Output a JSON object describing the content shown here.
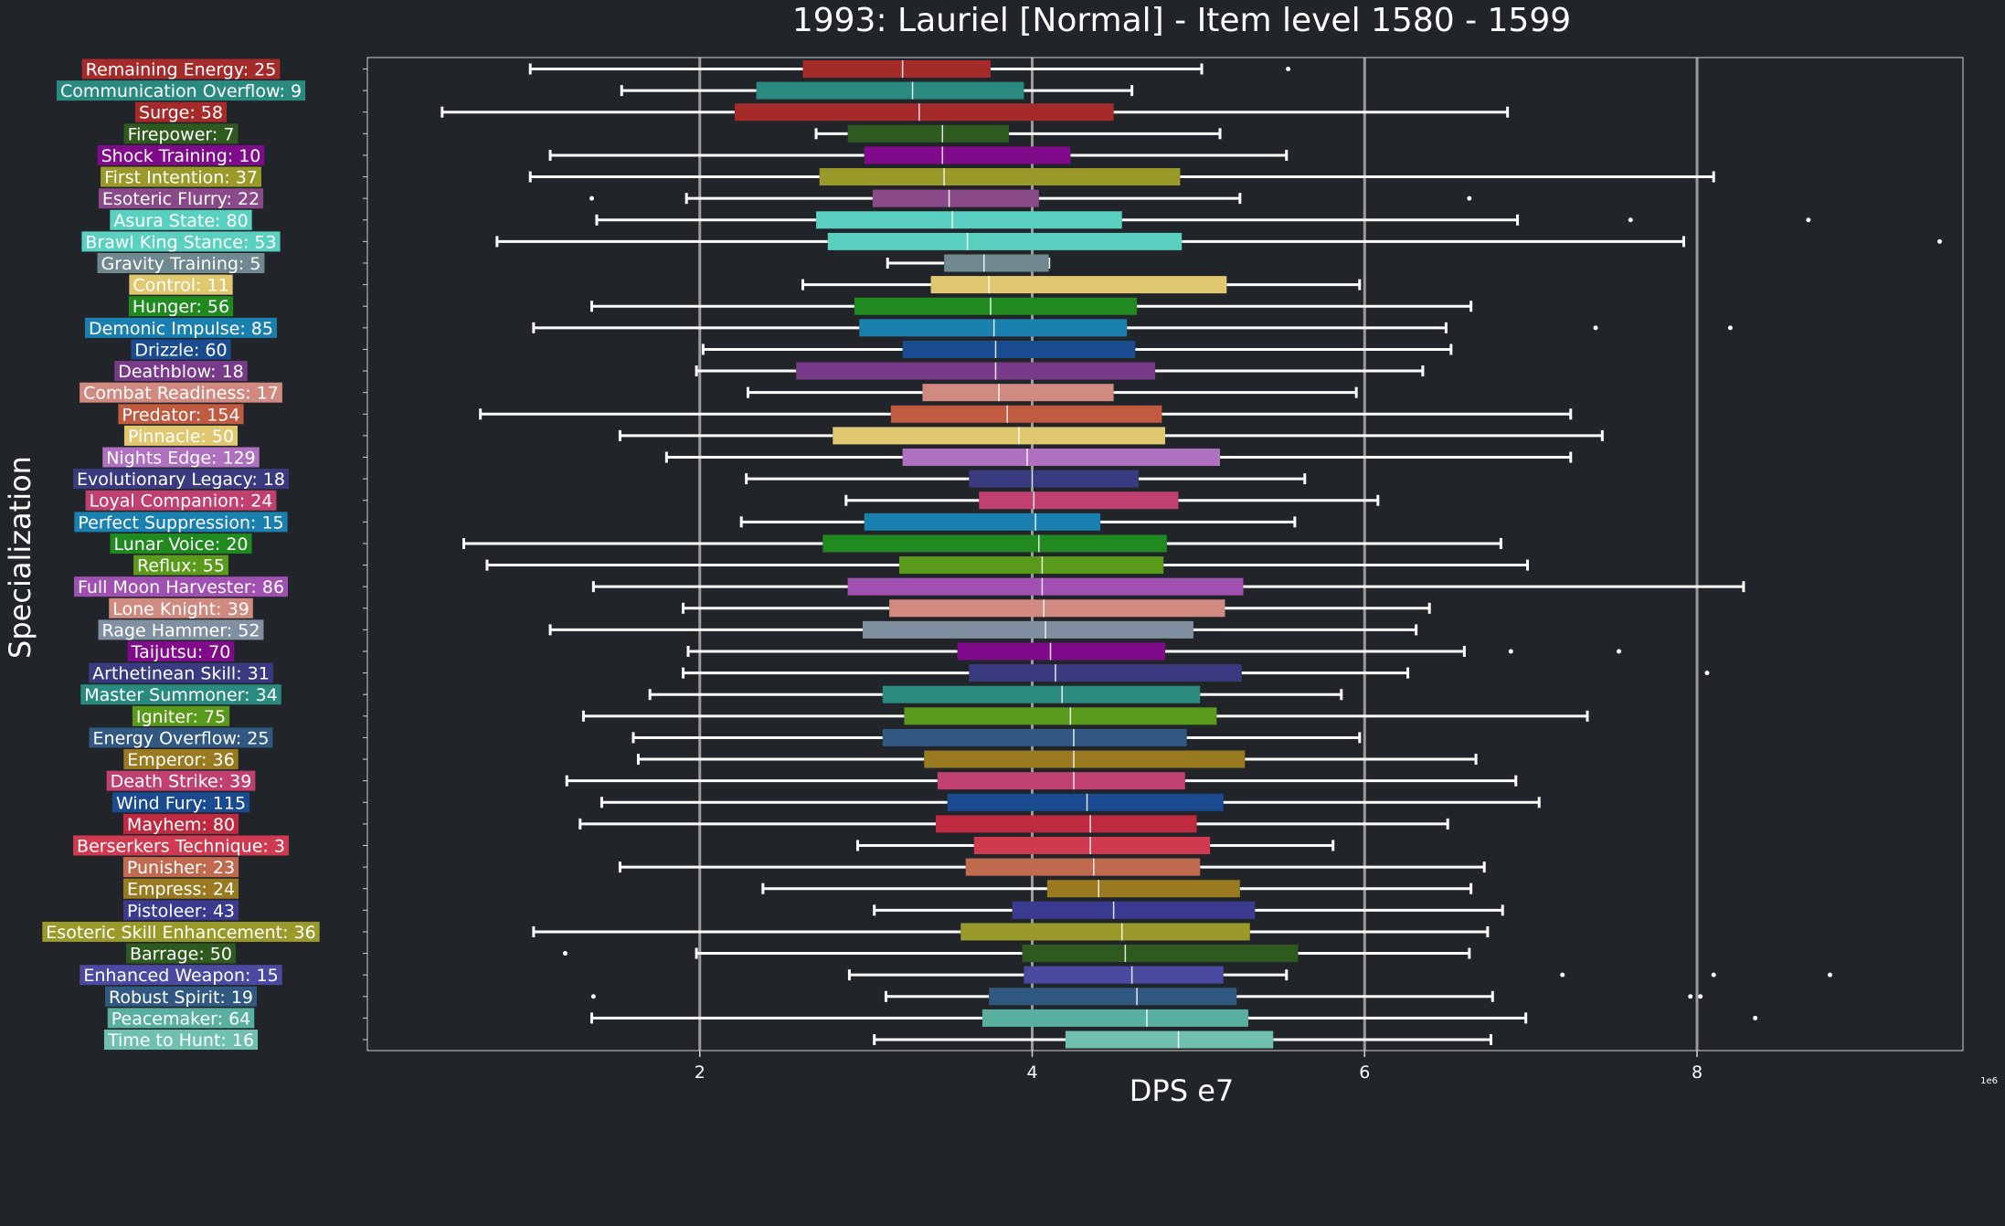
{
  "chart_data": {
    "type": "boxplot",
    "orientation": "horizontal",
    "title": "1993: Lauriel [Normal] - Item level 1580 - 1599",
    "xlabel": "DPS e7",
    "ylabel": "Specialization",
    "x_offset_label": "1e6",
    "xlim": [
      0.0,
      9.6
    ],
    "xticks": [
      2,
      4,
      6,
      8
    ],
    "xtick_labels": [
      "2",
      "4",
      "6",
      "8"
    ],
    "grid": "vertical lines at major ticks",
    "background": "#212428",
    "categories": [
      {
        "label": "Remaining Energy: 25",
        "color": "#a52a2a",
        "min": 0.98,
        "q1": 2.62,
        "median": 3.22,
        "q3": 3.75,
        "max": 5.02,
        "outliers": [
          5.54
        ]
      },
      {
        "label": "Communication Overflow: 9",
        "color": "#2a8a80",
        "min": 1.53,
        "q1": 2.34,
        "median": 3.28,
        "q3": 3.95,
        "max": 4.6,
        "outliers": []
      },
      {
        "label": "Surge: 58",
        "color": "#a52a2a",
        "min": 0.45,
        "q1": 2.21,
        "median": 3.32,
        "q3": 4.49,
        "max": 6.86,
        "outliers": []
      },
      {
        "label": "Firepower: 7",
        "color": "#2f5a1f",
        "min": 2.7,
        "q1": 2.89,
        "median": 3.46,
        "q3": 3.86,
        "max": 5.13,
        "outliers": []
      },
      {
        "label": "Shock Training: 10",
        "color": "#800b8a",
        "min": 1.1,
        "q1": 2.99,
        "median": 3.46,
        "q3": 4.23,
        "max": 5.53,
        "outliers": []
      },
      {
        "label": "First Intention: 37",
        "color": "#9a9a2a",
        "min": 0.98,
        "q1": 2.72,
        "median": 3.47,
        "q3": 4.89,
        "max": 8.1,
        "outliers": []
      },
      {
        "label": "Esoteric Flurry: 22",
        "color": "#8a4a8a",
        "min": 1.92,
        "q1": 3.04,
        "median": 3.5,
        "q3": 4.04,
        "max": 5.25,
        "outliers": [
          1.35,
          6.63
        ]
      },
      {
        "label": "Asura State: 80",
        "color": "#5ad0c0",
        "min": 1.38,
        "q1": 2.7,
        "median": 3.52,
        "q3": 4.54,
        "max": 6.92,
        "outliers": [
          7.6,
          8.67
        ]
      },
      {
        "label": "Brawl King Stance: 53",
        "color": "#5ad0c0",
        "min": 0.78,
        "q1": 2.77,
        "median": 3.61,
        "q3": 4.9,
        "max": 7.92,
        "outliers": [
          9.46
        ]
      },
      {
        "label": "Gravity Training: 5",
        "color": "#708890",
        "min": 3.13,
        "q1": 3.47,
        "median": 3.71,
        "q3": 4.1,
        "max": 4.1,
        "outliers": []
      },
      {
        "label": "Control: 11",
        "color": "#e0c870",
        "min": 2.62,
        "q1": 3.39,
        "median": 3.74,
        "q3": 5.17,
        "max": 5.97,
        "outliers": []
      },
      {
        "label": "Hunger: 56",
        "color": "#208a20",
        "min": 1.35,
        "q1": 2.93,
        "median": 3.75,
        "q3": 4.63,
        "max": 6.64,
        "outliers": []
      },
      {
        "label": "Demonic Impulse: 85",
        "color": "#1a80b0",
        "min": 1.0,
        "q1": 2.96,
        "median": 3.77,
        "q3": 4.57,
        "max": 6.49,
        "outliers": [
          7.39,
          8.2
        ]
      },
      {
        "label": "Drizzle: 60",
        "color": "#1a4a90",
        "min": 2.02,
        "q1": 3.22,
        "median": 3.78,
        "q3": 4.62,
        "max": 6.52,
        "outliers": []
      },
      {
        "label": "Deathblow: 18",
        "color": "#7a3a8a",
        "min": 1.98,
        "q1": 2.58,
        "median": 3.78,
        "q3": 4.74,
        "max": 6.35,
        "outliers": []
      },
      {
        "label": "Combat Readiness: 17",
        "color": "#d08a80",
        "min": 2.29,
        "q1": 3.34,
        "median": 3.8,
        "q3": 4.49,
        "max": 5.95,
        "outliers": []
      },
      {
        "label": "Predator: 154",
        "color": "#c05a40",
        "min": 0.68,
        "q1": 3.15,
        "median": 3.85,
        "q3": 4.78,
        "max": 7.24,
        "outliers": []
      },
      {
        "label": "Pinnacle: 50",
        "color": "#e0c870",
        "min": 1.52,
        "q1": 2.8,
        "median": 3.92,
        "q3": 4.8,
        "max": 7.43,
        "outliers": []
      },
      {
        "label": "Nights Edge: 129",
        "color": "#b070c0",
        "min": 1.8,
        "q1": 3.22,
        "median": 3.97,
        "q3": 5.13,
        "max": 7.24,
        "outliers": []
      },
      {
        "label": "Evolutionary Legacy: 18",
        "color": "#3a3a80",
        "min": 2.28,
        "q1": 3.62,
        "median": 4.0,
        "q3": 4.64,
        "max": 5.64,
        "outliers": []
      },
      {
        "label": "Loyal Companion: 24",
        "color": "#c04070",
        "min": 2.88,
        "q1": 3.68,
        "median": 4.01,
        "q3": 4.88,
        "max": 6.08,
        "outliers": []
      },
      {
        "label": "Perfect Suppression: 15",
        "color": "#1a80b0",
        "min": 2.25,
        "q1": 2.99,
        "median": 4.02,
        "q3": 4.41,
        "max": 5.58,
        "outliers": []
      },
      {
        "label": "Lunar Voice: 20",
        "color": "#208a20",
        "min": 0.58,
        "q1": 2.74,
        "median": 4.04,
        "q3": 4.81,
        "max": 6.82,
        "outliers": []
      },
      {
        "label": "Reflux: 55",
        "color": "#5a9a1a",
        "min": 0.72,
        "q1": 3.2,
        "median": 4.06,
        "q3": 4.79,
        "max": 6.98,
        "outliers": []
      },
      {
        "label": "Full Moon Harvester: 86",
        "color": "#a050b0",
        "min": 1.36,
        "q1": 2.89,
        "median": 4.06,
        "q3": 5.27,
        "max": 8.28,
        "outliers": []
      },
      {
        "label": "Lone Knight: 39",
        "color": "#d08a80",
        "min": 1.9,
        "q1": 3.14,
        "median": 4.07,
        "q3": 5.16,
        "max": 6.39,
        "outliers": []
      },
      {
        "label": "Rage Hammer: 52",
        "color": "#8090a0",
        "min": 1.1,
        "q1": 2.98,
        "median": 4.08,
        "q3": 4.97,
        "max": 6.31,
        "outliers": []
      },
      {
        "label": "Taijutsu: 70",
        "color": "#800b8a",
        "min": 1.93,
        "q1": 3.55,
        "median": 4.11,
        "q3": 4.8,
        "max": 6.6,
        "outliers": [
          6.88,
          7.53
        ]
      },
      {
        "label": "Arthetinean Skill: 31",
        "color": "#3a3a80",
        "min": 1.9,
        "q1": 3.62,
        "median": 4.14,
        "q3": 5.26,
        "max": 6.26,
        "outliers": [
          8.06
        ]
      },
      {
        "label": "Master Summoner: 34",
        "color": "#2a8a80",
        "min": 1.7,
        "q1": 3.1,
        "median": 4.18,
        "q3": 5.01,
        "max": 5.86,
        "outliers": []
      },
      {
        "label": "Igniter: 75",
        "color": "#5a9a1a",
        "min": 1.3,
        "q1": 3.23,
        "median": 4.23,
        "q3": 5.11,
        "max": 7.34,
        "outliers": []
      },
      {
        "label": "Energy Overflow: 25",
        "color": "#305880",
        "min": 1.6,
        "q1": 3.1,
        "median": 4.25,
        "q3": 4.93,
        "max": 5.97,
        "outliers": []
      },
      {
        "label": "Emperor: 36",
        "color": "#9a7a20",
        "min": 1.63,
        "q1": 3.35,
        "median": 4.25,
        "q3": 5.28,
        "max": 6.67,
        "outliers": []
      },
      {
        "label": "Death Strike: 39",
        "color": "#c04070",
        "min": 1.2,
        "q1": 3.43,
        "median": 4.25,
        "q3": 4.92,
        "max": 6.91,
        "outliers": []
      },
      {
        "label": "Wind Fury: 115",
        "color": "#1a4a90",
        "min": 1.41,
        "q1": 3.49,
        "median": 4.33,
        "q3": 5.15,
        "max": 7.05,
        "outliers": []
      },
      {
        "label": "Mayhem: 80",
        "color": "#c02a40",
        "min": 1.28,
        "q1": 3.42,
        "median": 4.35,
        "q3": 4.99,
        "max": 6.5,
        "outliers": []
      },
      {
        "label": "Berserkers Technique: 3",
        "color": "#d03a50",
        "min": 2.95,
        "q1": 3.65,
        "median": 4.35,
        "q3": 5.07,
        "max": 5.81,
        "outliers": []
      },
      {
        "label": "Punisher: 23",
        "color": "#c06a50",
        "min": 1.52,
        "q1": 3.6,
        "median": 4.37,
        "q3": 5.01,
        "max": 6.72,
        "outliers": []
      },
      {
        "label": "Empress: 24",
        "color": "#9a7a20",
        "min": 2.38,
        "q1": 4.09,
        "median": 4.4,
        "q3": 5.25,
        "max": 6.64,
        "outliers": []
      },
      {
        "label": "Pistoleer: 43",
        "color": "#3a3a90",
        "min": 3.05,
        "q1": 3.88,
        "median": 4.49,
        "q3": 5.34,
        "max": 6.83,
        "outliers": []
      },
      {
        "label": "Esoteric Skill Enhancement: 36",
        "color": "#9a9a2a",
        "min": 1.0,
        "q1": 3.57,
        "median": 4.54,
        "q3": 5.31,
        "max": 6.74,
        "outliers": []
      },
      {
        "label": "Barrage: 50",
        "color": "#2f5a1f",
        "min": 1.98,
        "q1": 3.94,
        "median": 4.56,
        "q3": 5.6,
        "max": 6.63,
        "outliers": [
          1.19
        ]
      },
      {
        "label": "Enhanced Weapon: 15",
        "color": "#4a4aa0",
        "min": 2.9,
        "q1": 3.95,
        "median": 4.6,
        "q3": 5.15,
        "max": 5.53,
        "outliers": [
          7.19,
          8.1,
          8.8
        ]
      },
      {
        "label": "Robust Spirit: 19",
        "color": "#305880",
        "min": 3.12,
        "q1": 3.74,
        "median": 4.63,
        "q3": 5.23,
        "max": 6.77,
        "outliers": [
          1.36,
          7.96,
          8.02
        ]
      },
      {
        "label": "Peacemaker: 64",
        "color": "#5ab0a0",
        "min": 1.35,
        "q1": 3.7,
        "median": 4.69,
        "q3": 5.3,
        "max": 6.97,
        "outliers": [
          8.35
        ]
      },
      {
        "label": "Time to Hunt: 16",
        "color": "#70c0b0",
        "min": 3.05,
        "q1": 4.2,
        "median": 4.88,
        "q3": 5.45,
        "max": 6.76,
        "outliers": []
      }
    ]
  }
}
